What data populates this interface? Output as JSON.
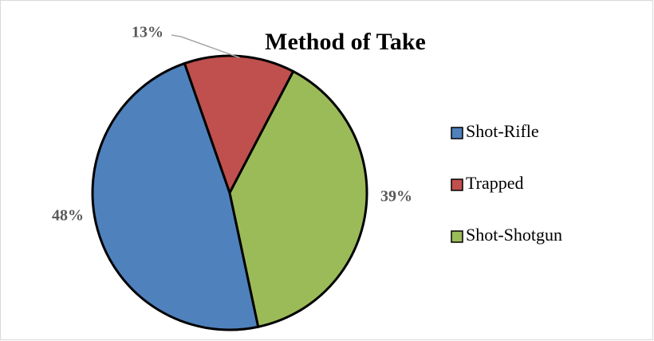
{
  "chart_data": {
    "type": "pie",
    "title": "Method of Take",
    "categories": [
      "Shot-Rifle",
      "Trapped",
      "Shot-Shotgun"
    ],
    "values": [
      48,
      13,
      39
    ],
    "value_labels": [
      "48%",
      "13%",
      "39%"
    ],
    "colors": [
      "#4f81bd",
      "#c0504d",
      "#9bbb59"
    ],
    "start_angle": 168,
    "legend": "right"
  }
}
